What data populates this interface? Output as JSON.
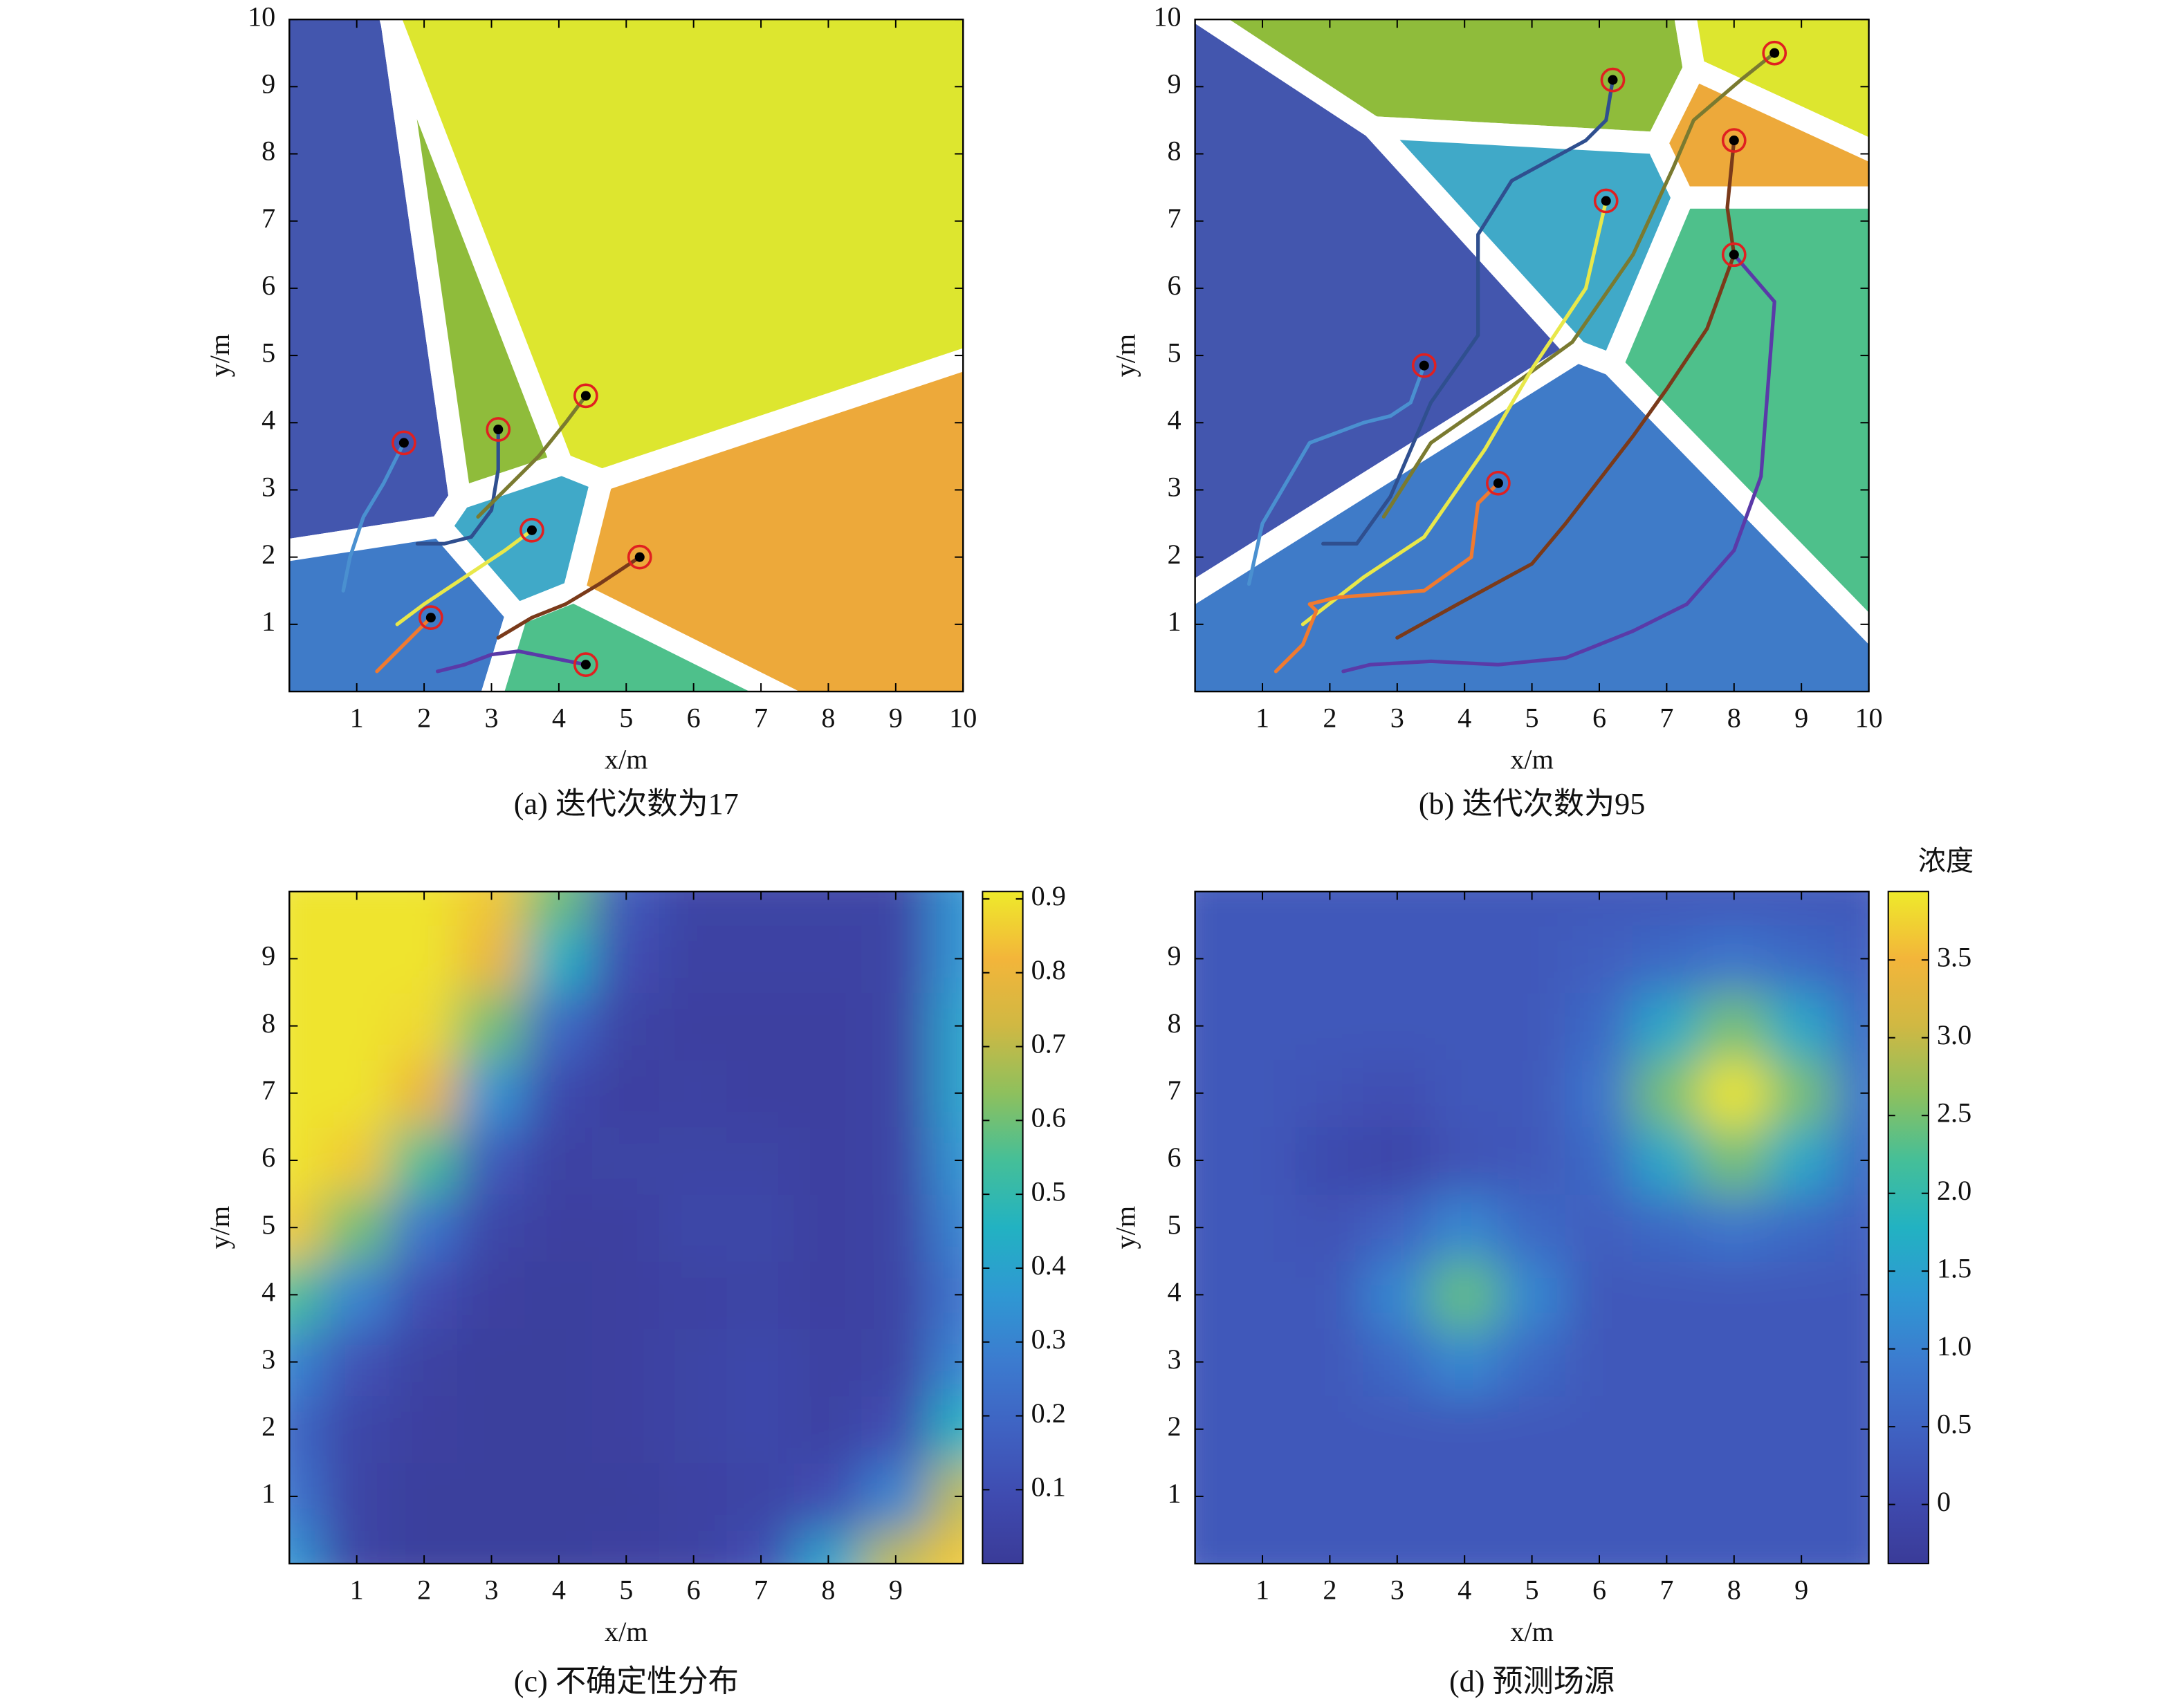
{
  "chart_data": [
    {
      "type": "voronoi",
      "caption": "(a) 迭代次数为17",
      "xlabel": "x/m",
      "ylabel": "y/m",
      "xlim": [
        0,
        10
      ],
      "ylim": [
        0,
        10
      ],
      "xticks": [
        1,
        2,
        3,
        4,
        5,
        6,
        7,
        8,
        9,
        10
      ],
      "yticks": [
        1,
        2,
        3,
        4,
        5,
        6,
        7,
        8,
        9,
        10
      ],
      "series": [
        {
          "color": "#4a90d0",
          "cell_color": "#4356ae",
          "x": [
            0.8,
            0.9,
            1.1,
            1.4,
            1.6,
            1.7
          ],
          "y": [
            1.5,
            2.0,
            2.6,
            3.1,
            3.5,
            3.7
          ]
        },
        {
          "color": "#2f4f8f",
          "cell_color": "#8fbc3b",
          "x": [
            1.9,
            2.3,
            2.7,
            3.0,
            3.1,
            3.1
          ],
          "y": [
            2.2,
            2.2,
            2.3,
            2.7,
            3.3,
            3.9
          ]
        },
        {
          "color": "#7a7a30",
          "cell_color": "#dde62f",
          "x": [
            2.8,
            3.2,
            3.7,
            4.1,
            4.4
          ],
          "y": [
            2.6,
            3.0,
            3.5,
            4.0,
            4.4
          ]
        },
        {
          "color": "#e8e84a",
          "cell_color": "#40a9c8",
          "x": [
            1.6,
            2.0,
            2.6,
            3.2,
            3.6
          ],
          "y": [
            1.0,
            1.3,
            1.7,
            2.1,
            2.4
          ]
        },
        {
          "color": "#f07a30",
          "cell_color": "#3f7bc8",
          "x": [
            1.3,
            1.6,
            1.9,
            2.1
          ],
          "y": [
            0.3,
            0.6,
            0.9,
            1.1
          ]
        },
        {
          "color": "#7a3a1a",
          "cell_color": "#eda93a",
          "x": [
            3.1,
            3.6,
            4.1,
            4.6,
            5.2
          ],
          "y": [
            0.8,
            1.1,
            1.3,
            1.6,
            2.0
          ]
        },
        {
          "color": "#5a3aa8",
          "cell_color": "#4ec08b",
          "x": [
            2.2,
            2.6,
            3.0,
            3.4,
            3.9,
            4.4
          ],
          "y": [
            0.3,
            0.4,
            0.55,
            0.6,
            0.5,
            0.4
          ]
        }
      ]
    },
    {
      "type": "voronoi",
      "caption": "(b) 迭代次数为95",
      "xlabel": "x/m",
      "ylabel": "y/m",
      "xlim": [
        0,
        10
      ],
      "ylim": [
        0,
        10
      ],
      "xticks": [
        1,
        2,
        3,
        4,
        5,
        6,
        7,
        8,
        9,
        10
      ],
      "yticks": [
        1,
        2,
        3,
        4,
        5,
        6,
        7,
        8,
        9,
        10
      ],
      "series": [
        {
          "color": "#4a90d0",
          "cell_color": "#4356ae",
          "x": [
            0.8,
            1.0,
            1.7,
            2.5,
            2.9,
            3.2,
            3.4
          ],
          "y": [
            1.6,
            2.5,
            3.7,
            4.0,
            4.1,
            4.3,
            4.85
          ]
        },
        {
          "color": "#2f4f8f",
          "cell_color": "#8fbc3b",
          "x": [
            1.9,
            2.4,
            2.9,
            3.5,
            4.2,
            4.2,
            4.7,
            5.8,
            6.1,
            6.2
          ],
          "y": [
            2.2,
            2.2,
            2.9,
            4.3,
            5.3,
            6.8,
            7.6,
            8.2,
            8.5,
            9.1
          ]
        },
        {
          "color": "#7a7a30",
          "cell_color": "#dde62f",
          "x": [
            2.8,
            3.5,
            4.5,
            5.6,
            6.5,
            7.1,
            7.4,
            8.1,
            8.6
          ],
          "y": [
            2.6,
            3.7,
            4.4,
            5.2,
            6.5,
            7.8,
            8.5,
            9.1,
            9.5
          ]
        },
        {
          "color": "#e8e84a",
          "cell_color": "#40a9c8",
          "x": [
            1.6,
            2.5,
            3.4,
            4.3,
            5.0,
            5.8,
            6.1
          ],
          "y": [
            1.0,
            1.7,
            2.3,
            3.6,
            4.8,
            6.0,
            7.3
          ]
        },
        {
          "color": "#f07a30",
          "cell_color": "#3f7bc8",
          "x": [
            1.2,
            1.6,
            1.8,
            1.7,
            2.1,
            3.4,
            4.1,
            4.2,
            4.5
          ],
          "y": [
            0.3,
            0.7,
            1.2,
            1.3,
            1.4,
            1.5,
            2.0,
            2.8,
            3.1
          ]
        },
        {
          "color": "#7a3a1a",
          "cell_color": "#eda93a",
          "x": [
            3.0,
            3.9,
            5.0,
            5.5,
            6.5,
            7.0,
            7.6,
            8.0,
            7.9,
            8.0
          ],
          "y": [
            0.8,
            1.3,
            1.9,
            2.5,
            3.8,
            4.5,
            5.4,
            6.5,
            7.2,
            8.2
          ]
        },
        {
          "color": "#5a3aa8",
          "cell_color": "#4ec08b",
          "x": [
            2.2,
            2.6,
            3.5,
            4.5,
            5.5,
            6.5,
            7.3,
            8.0,
            8.4,
            8.5,
            8.6,
            8.0
          ],
          "y": [
            0.3,
            0.4,
            0.45,
            0.4,
            0.5,
            0.9,
            1.3,
            2.1,
            3.2,
            4.5,
            5.8,
            6.5
          ]
        }
      ]
    },
    {
      "type": "heatmap",
      "caption": "(c) 不确定性分布",
      "xlabel": "x/m",
      "ylabel": "y/m",
      "xlim": [
        0,
        10
      ],
      "ylim": [
        0,
        10
      ],
      "xticks": [
        1,
        2,
        3,
        4,
        5,
        6,
        7,
        8,
        9
      ],
      "yticks": [
        1,
        2,
        3,
        4,
        5,
        6,
        7,
        8,
        9
      ],
      "clim": [
        0,
        0.91
      ],
      "cticks": [
        0.1,
        0.2,
        0.3,
        0.4,
        0.5,
        0.6,
        0.7,
        0.8,
        0.9
      ],
      "colormap": [
        "#3a3b98",
        "#3f4bb0",
        "#3f62c2",
        "#3c7bcf",
        "#2f98d3",
        "#22b2c2",
        "#45bf98",
        "#8ec05d",
        "#d0b843",
        "#f3b53a",
        "#eeea2b"
      ],
      "x": [
        0,
        1,
        2,
        3,
        4,
        5,
        6,
        7,
        8,
        9,
        10
      ],
      "y": [
        0,
        1,
        2,
        3,
        4,
        5,
        6,
        7,
        8,
        9,
        10
      ],
      "z": [
        [
          0.35,
          0.05,
          0.02,
          0.02,
          0.02,
          0.03,
          0.04,
          0.1,
          0.4,
          0.7,
          0.85
        ],
        [
          0.25,
          0.05,
          0.02,
          0.02,
          0.02,
          0.02,
          0.04,
          0.05,
          0.1,
          0.3,
          0.7
        ],
        [
          0.2,
          0.06,
          0.03,
          0.02,
          0.02,
          0.03,
          0.05,
          0.07,
          0.04,
          0.1,
          0.45
        ],
        [
          0.3,
          0.12,
          0.04,
          0.02,
          0.02,
          0.03,
          0.05,
          0.07,
          0.04,
          0.05,
          0.3
        ],
        [
          0.55,
          0.3,
          0.1,
          0.03,
          0.02,
          0.03,
          0.04,
          0.05,
          0.03,
          0.05,
          0.25
        ],
        [
          0.85,
          0.6,
          0.25,
          0.06,
          0.03,
          0.03,
          0.06,
          0.06,
          0.03,
          0.05,
          0.3
        ],
        [
          0.9,
          0.85,
          0.55,
          0.15,
          0.04,
          0.05,
          0.05,
          0.05,
          0.03,
          0.05,
          0.35
        ],
        [
          0.9,
          0.9,
          0.8,
          0.35,
          0.08,
          0.03,
          0.04,
          0.03,
          0.03,
          0.05,
          0.4
        ],
        [
          0.9,
          0.9,
          0.88,
          0.6,
          0.2,
          0.05,
          0.03,
          0.03,
          0.03,
          0.05,
          0.4
        ],
        [
          0.9,
          0.9,
          0.9,
          0.8,
          0.45,
          0.1,
          0.04,
          0.04,
          0.04,
          0.05,
          0.35
        ],
        [
          0.9,
          0.9,
          0.9,
          0.85,
          0.6,
          0.15,
          0.05,
          0.05,
          0.05,
          0.05,
          0.35
        ]
      ]
    },
    {
      "type": "heatmap",
      "caption": "(d) 预测场源",
      "xlabel": "x/m",
      "ylabel": "y/m",
      "colorbar_label": "浓度",
      "xlim": [
        0,
        10
      ],
      "ylim": [
        0,
        10
      ],
      "xticks": [
        1,
        2,
        3,
        4,
        5,
        6,
        7,
        8,
        9
      ],
      "yticks": [
        1,
        2,
        3,
        4,
        5,
        6,
        7,
        8,
        9
      ],
      "clim": [
        -0.38,
        3.94
      ],
      "cticks": [
        0,
        0.5,
        {
          "value": 1,
          "label": "1.0"
        },
        1.5,
        {
          "value": 2,
          "label": "2.0"
        },
        2.5,
        {
          "value": 3,
          "label": "3.0"
        },
        3.5
      ],
      "colormap": [
        "#3a3b98",
        "#3f4bb0",
        "#3f62c2",
        "#3c7bcf",
        "#2f98d3",
        "#22b2c2",
        "#45bf98",
        "#8ec05d",
        "#d0b843",
        "#f3b53a",
        "#eeea2b"
      ],
      "x": [
        0,
        1,
        2,
        3,
        4,
        5,
        6,
        7,
        8,
        9,
        10
      ],
      "y": [
        0,
        1,
        2,
        3,
        4,
        5,
        6,
        7,
        8,
        9,
        10
      ],
      "z": [
        [
          0.3,
          0.3,
          0.3,
          0.3,
          0.3,
          0.3,
          0.3,
          0.3,
          0.3,
          0.3,
          0.3
        ],
        [
          0.3,
          0.3,
          0.3,
          0.3,
          0.3,
          0.3,
          0.3,
          0.3,
          0.3,
          0.3,
          0.3
        ],
        [
          0.3,
          0.3,
          0.3,
          0.3,
          0.3,
          0.3,
          0.3,
          0.3,
          0.3,
          0.3,
          0.3
        ],
        [
          0.3,
          0.3,
          0.3,
          0.6,
          1.1,
          0.6,
          0.3,
          0.3,
          0.3,
          0.3,
          0.3
        ],
        [
          0.3,
          0.3,
          0.3,
          1.1,
          2.4,
          1.1,
          0.3,
          0.3,
          0.3,
          0.3,
          0.3
        ],
        [
          0.3,
          0.3,
          0.2,
          0.5,
          1.1,
          0.6,
          0.4,
          0.6,
          0.8,
          0.6,
          0.4
        ],
        [
          0.3,
          0.3,
          0.0,
          -0.1,
          0.2,
          0.3,
          0.6,
          1.6,
          2.5,
          1.6,
          0.6
        ],
        [
          0.3,
          0.3,
          0.2,
          0.1,
          0.3,
          0.3,
          0.8,
          2.5,
          3.9,
          2.5,
          0.8
        ],
        [
          0.3,
          0.3,
          0.3,
          0.3,
          0.3,
          0.3,
          0.6,
          1.6,
          2.5,
          1.6,
          0.6
        ],
        [
          0.3,
          0.3,
          0.3,
          0.3,
          0.3,
          0.3,
          0.4,
          0.6,
          0.8,
          0.6,
          0.4
        ],
        [
          0.3,
          0.3,
          0.3,
          0.3,
          0.3,
          0.3,
          0.3,
          0.3,
          0.3,
          0.3,
          0.3
        ]
      ]
    }
  ]
}
